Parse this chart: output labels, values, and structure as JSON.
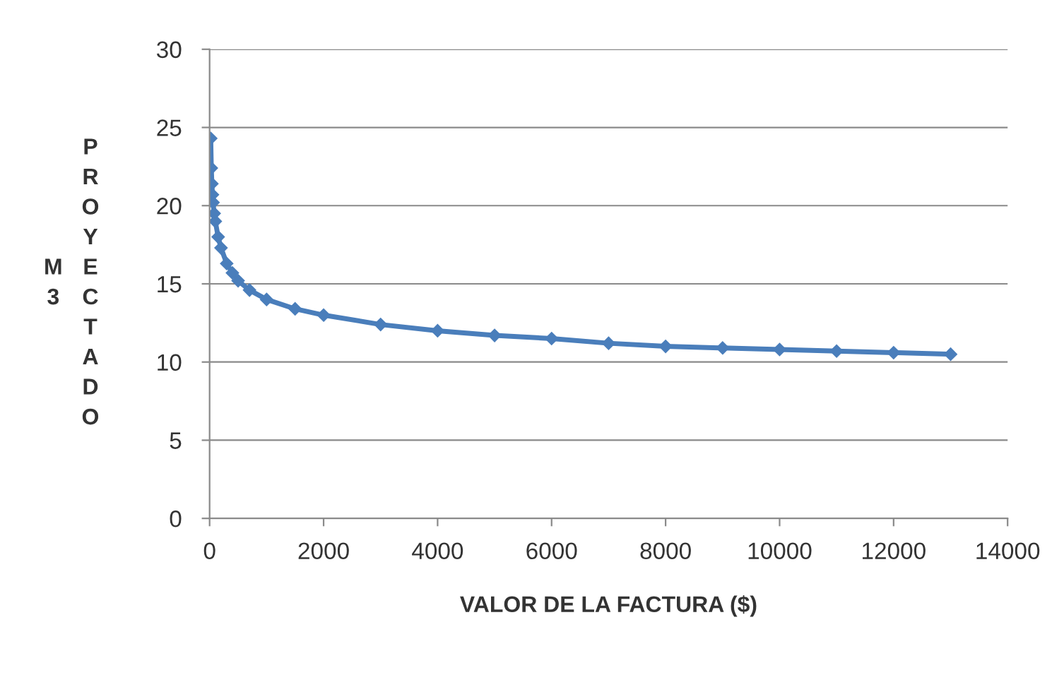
{
  "chart_data": {
    "type": "line",
    "xlabel": "VALOR DE LA FACTURA ($)",
    "ylabel": "M3 PROYECTADO",
    "x": [
      20,
      30,
      40,
      50,
      60,
      80,
      100,
      150,
      200,
      300,
      400,
      500,
      700,
      1000,
      1500,
      2000,
      3000,
      4000,
      5000,
      6000,
      7000,
      8000,
      9000,
      10000,
      11000,
      12000,
      13000
    ],
    "series": [
      {
        "color": "#4a7ebb",
        "values": [
          24.3,
          22.4,
          21.4,
          20.7,
          20.2,
          19.5,
          19,
          18,
          17.3,
          16.3,
          15.7,
          15.2,
          14.6,
          14,
          13.4,
          13,
          12.4,
          12,
          11.7,
          11.5,
          11.2,
          11,
          10.9,
          10.8,
          10.7,
          10.6,
          10.5
        ]
      }
    ],
    "xlim": [
      0,
      14000
    ],
    "xticks": [
      0,
      2000,
      4000,
      6000,
      8000,
      10000,
      12000,
      14000
    ],
    "ylim": [
      0,
      30
    ],
    "yticks": [
      0,
      5,
      10,
      15,
      20,
      25,
      30
    ],
    "grid": "y",
    "marker": "diamond",
    "line_style": "solid",
    "legend": false
  }
}
